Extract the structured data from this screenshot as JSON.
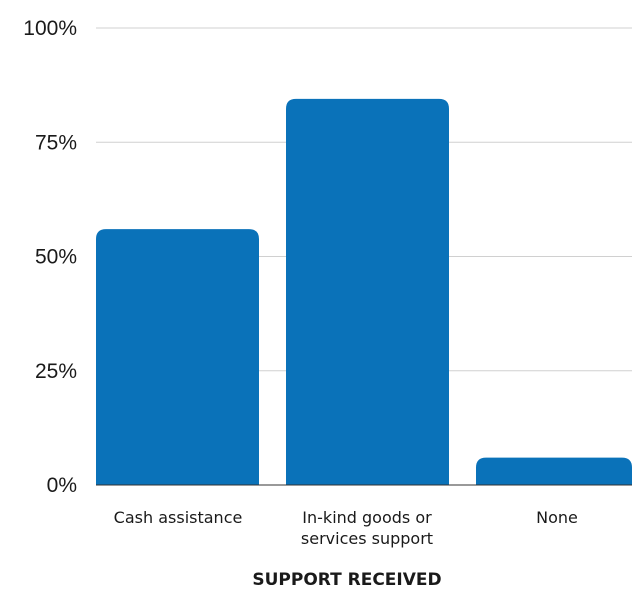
{
  "chart_data": {
    "type": "bar",
    "categories": [
      "Cash assistance",
      "In-kind goods or services support",
      "None"
    ],
    "category_lines": [
      [
        "Cash assistance"
      ],
      [
        "In-kind goods or",
        "services support"
      ],
      [
        "None"
      ]
    ],
    "values": [
      56,
      84.5,
      6
    ],
    "xlabel": "SUPPORT RECEIVED",
    "ylabel": "",
    "ylim": [
      0,
      100
    ],
    "yticks": [
      0,
      25,
      50,
      75,
      100
    ],
    "ytick_labels": [
      "0%",
      "25%",
      "50%",
      "75%",
      "100%"
    ],
    "grid": true,
    "legend": "none",
    "bar_color": "#0a72b9",
    "grid_color": "#d0d0d0",
    "text_color": "#1a1a1a"
  }
}
